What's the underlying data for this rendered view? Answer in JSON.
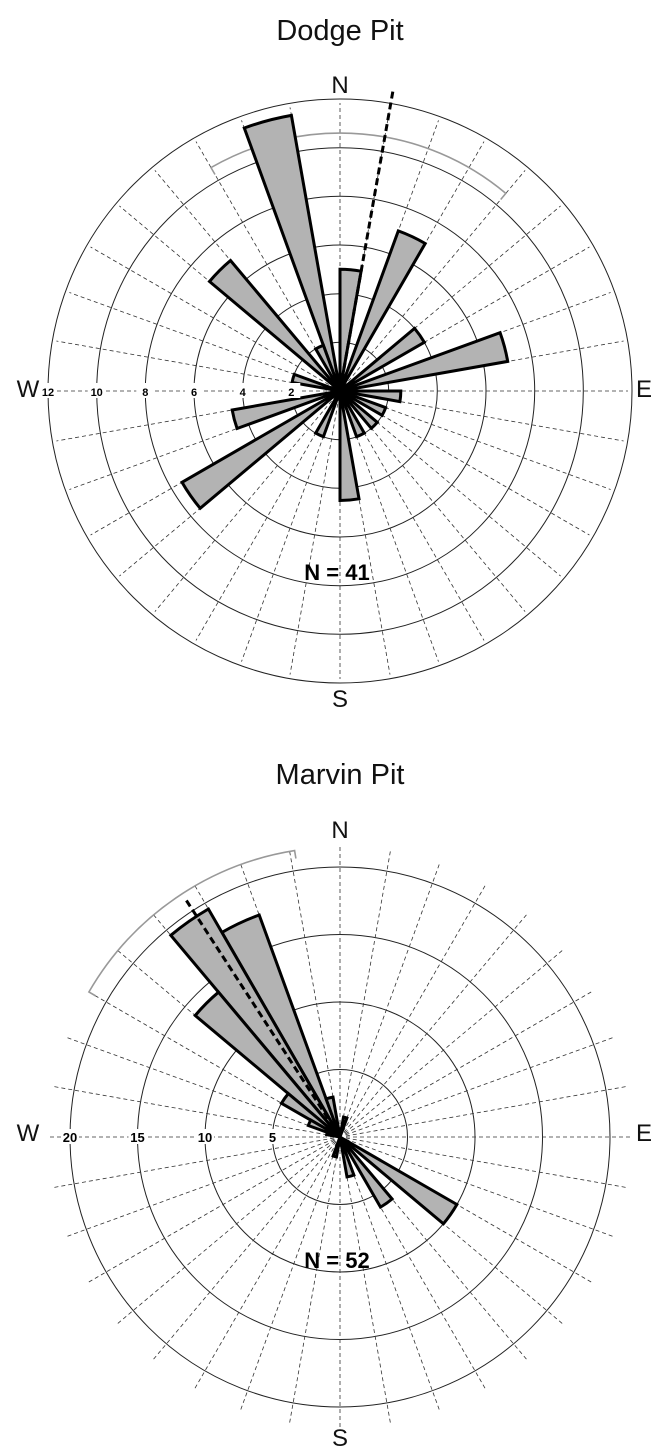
{
  "chart_data": [
    {
      "type": "rose",
      "title": "Dodge Pit",
      "count_label": "N = 41",
      "directions": {
        "n": "N",
        "e": "E",
        "s": "S",
        "w": "W"
      },
      "radial_ticks": [
        "2",
        "4",
        "6",
        "8",
        "10",
        "12"
      ],
      "radial_max": 12,
      "ring_step": 2,
      "sector_width_deg": 10,
      "mean_direction_deg": 10,
      "confidence_arc_deg": [
        -30,
        40
      ],
      "grid": true,
      "petals": [
        {
          "direction_deg": 5,
          "value": 5
        },
        {
          "direction_deg": 345,
          "value": 11.5
        },
        {
          "direction_deg": 335,
          "value": 2
        },
        {
          "direction_deg": 315,
          "value": 7
        },
        {
          "direction_deg": 285,
          "value": 2
        },
        {
          "direction_deg": 255,
          "value": 4.5
        },
        {
          "direction_deg": 235,
          "value": 7.5
        },
        {
          "direction_deg": 205,
          "value": 2
        },
        {
          "direction_deg": 175,
          "value": 4.5
        },
        {
          "direction_deg": 155,
          "value": 2
        },
        {
          "direction_deg": 135,
          "value": 2
        },
        {
          "direction_deg": 115,
          "value": 2
        },
        {
          "direction_deg": 95,
          "value": 2.5
        },
        {
          "direction_deg": 75,
          "value": 7
        },
        {
          "direction_deg": 55,
          "value": 4
        },
        {
          "direction_deg": 25,
          "value": 7
        }
      ]
    },
    {
      "type": "rose",
      "title": "Marvin Pit",
      "count_label": "N = 52",
      "directions": {
        "n": "N",
        "e": "E",
        "s": "S",
        "w": "W"
      },
      "radial_ticks": [
        "5",
        "10",
        "15",
        "20"
      ],
      "radial_max": 22,
      "ring_step": 5,
      "sector_width_deg": 10,
      "mean_direction_deg": 327,
      "confidence_arc_deg": [
        300,
        351
      ],
      "grid": true,
      "petals": [
        {
          "direction_deg": 335,
          "value": 17.5
        },
        {
          "direction_deg": 325,
          "value": 19.5
        },
        {
          "direction_deg": 315,
          "value": 14
        },
        {
          "direction_deg": 345,
          "value": 3
        },
        {
          "direction_deg": 305,
          "value": 5
        },
        {
          "direction_deg": 295,
          "value": 2.5
        },
        {
          "direction_deg": 285,
          "value": 1
        },
        {
          "direction_deg": 15,
          "value": 1.5
        },
        {
          "direction_deg": 125,
          "value": 10
        },
        {
          "direction_deg": 145,
          "value": 6
        },
        {
          "direction_deg": 165,
          "value": 3
        },
        {
          "direction_deg": 195,
          "value": 1.5
        }
      ]
    }
  ]
}
